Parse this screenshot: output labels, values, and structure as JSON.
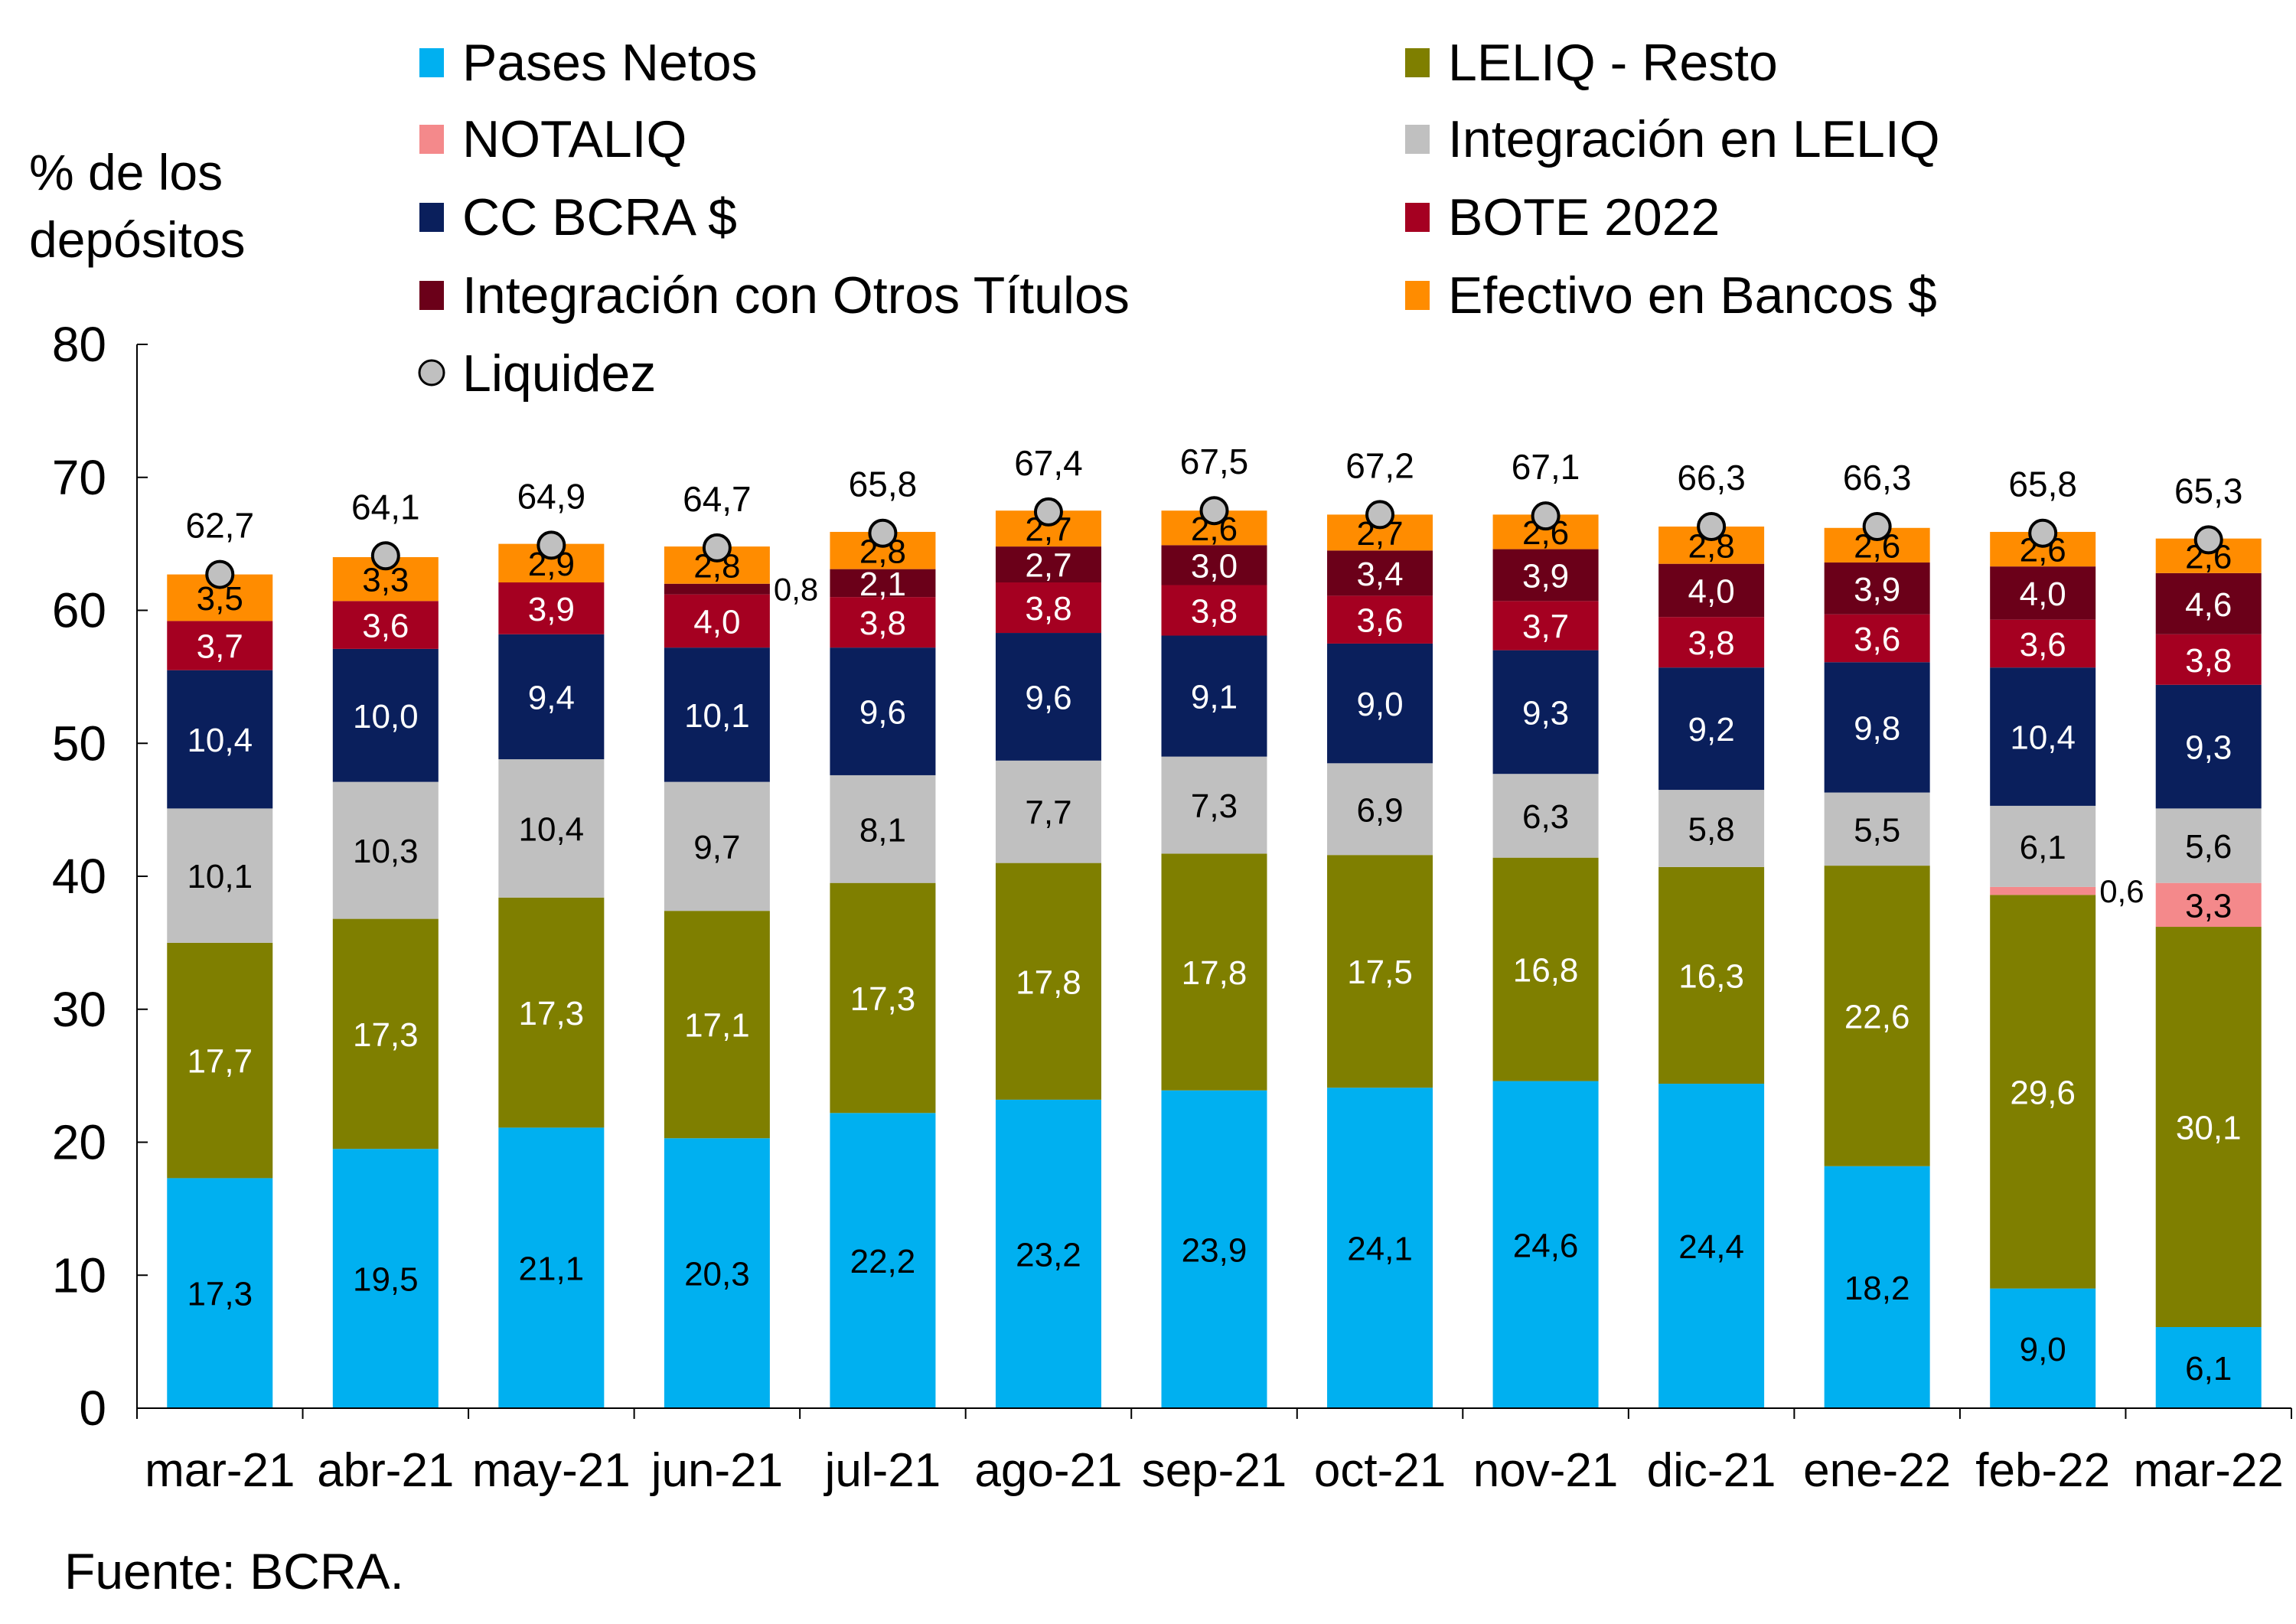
{
  "chart_data": {
    "type": "bar",
    "stacked": true,
    "ylabel": "% de los depósitos",
    "ylabel_lines": [
      "% de los",
      "depósitos"
    ],
    "ylim": [
      0,
      80
    ],
    "yticks": [
      "0",
      "10",
      "20",
      "30",
      "40",
      "50",
      "60",
      "70",
      "80"
    ],
    "grid": false,
    "legend_placement": "top",
    "source": "Fuente: BCRA.",
    "categories": [
      "mar-21",
      "abr-21",
      "may-21",
      "jun-21",
      "jul-21",
      "ago-21",
      "sep-21",
      "oct-21",
      "nov-21",
      "dic-21",
      "ene-22",
      "feb-22",
      "mar-22"
    ],
    "series": [
      {
        "name": "Pases Netos",
        "color": "#00B0F0",
        "label_color": "#000000",
        "values": [
          17.3,
          19.5,
          21.1,
          20.3,
          22.2,
          23.2,
          23.9,
          24.1,
          24.6,
          24.4,
          18.2,
          9.0,
          6.1
        ]
      },
      {
        "name": "LELIQ - Resto",
        "color": "#7F7F00",
        "label_color": "#FFFFFF",
        "values": [
          17.7,
          17.3,
          17.3,
          17.1,
          17.3,
          17.8,
          17.8,
          17.5,
          16.8,
          16.3,
          22.6,
          29.6,
          30.1
        ]
      },
      {
        "name": "NOTALIQ",
        "color": "#F4898B",
        "label_color": "#000000",
        "values": [
          null,
          null,
          null,
          null,
          null,
          null,
          null,
          null,
          null,
          null,
          null,
          0.6,
          3.3
        ]
      },
      {
        "name": "Integración en LELIQ",
        "color": "#C0C0C0",
        "label_color": "#000000",
        "values": [
          10.1,
          10.3,
          10.4,
          9.7,
          8.1,
          7.7,
          7.3,
          6.9,
          6.3,
          5.8,
          5.5,
          6.1,
          5.6
        ]
      },
      {
        "name": "CC BCRA $",
        "color": "#0A1F5C",
        "label_color": "#FFFFFF",
        "values": [
          10.4,
          10.0,
          9.4,
          10.1,
          9.6,
          9.6,
          9.1,
          9.0,
          9.3,
          9.2,
          9.8,
          10.4,
          9.3
        ]
      },
      {
        "name": "BOTE 2022",
        "color": "#A50021",
        "label_color": "#FFFFFF",
        "values": [
          3.7,
          3.6,
          3.9,
          4.0,
          3.8,
          3.8,
          3.8,
          3.6,
          3.7,
          3.8,
          3.6,
          3.6,
          3.8
        ]
      },
      {
        "name": "Integración con Otros Títulos",
        "color": "#6B0019",
        "label_color": "#FFFFFF",
        "values": [
          null,
          null,
          null,
          0.8,
          2.1,
          2.7,
          3.0,
          3.4,
          3.9,
          4.0,
          3.9,
          4.0,
          4.6
        ]
      },
      {
        "name": "Efectivo en Bancos $",
        "color": "#FF8C00",
        "label_color": "#000000",
        "values": [
          3.5,
          3.3,
          2.9,
          2.8,
          2.8,
          2.7,
          2.6,
          2.7,
          2.6,
          2.8,
          2.6,
          2.6,
          2.6
        ]
      }
    ],
    "line_series": {
      "name": "Liquidez",
      "type": "scatter",
      "marker_color": "#C0C0C0",
      "values": [
        62.7,
        64.1,
        64.9,
        64.7,
        65.8,
        67.4,
        67.5,
        67.2,
        67.1,
        66.3,
        66.3,
        65.8,
        65.3
      ]
    },
    "legend_order": [
      "Pases Netos",
      "LELIQ - Resto",
      "NOTALIQ",
      "Integración en LELIQ",
      "CC BCRA $",
      "BOTE 2022",
      "Integración con Otros Títulos",
      "Efectivo en Bancos $",
      "Liquidez"
    ]
  }
}
